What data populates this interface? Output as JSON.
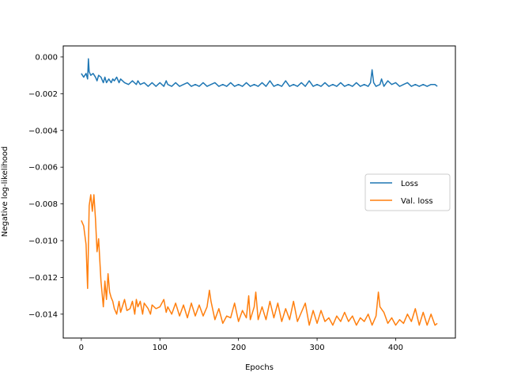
{
  "chart_data": {
    "type": "line",
    "xlabel": "Epochs",
    "ylabel": "Negative log-likelihood",
    "xlim": [
      -23,
      476
    ],
    "ylim": [
      -0.0153,
      0.0006
    ],
    "xticks": [
      0,
      100,
      200,
      300,
      400
    ],
    "xtick_labels": [
      "0",
      "100",
      "200",
      "300",
      "400"
    ],
    "yticks": [
      0.0,
      -0.002,
      -0.004,
      -0.006,
      -0.008,
      -0.01,
      -0.012,
      -0.014
    ],
    "ytick_labels": [
      "0.000",
      "−0.002",
      "−0.004",
      "−0.006",
      "−0.008",
      "−0.010",
      "−0.012",
      "−0.014"
    ],
    "grid": false,
    "legend_position": "center-right",
    "series": [
      {
        "name": "Loss",
        "color": "#1f77b4",
        "x": [
          0,
          3,
          6,
          8,
          9,
          10,
          12,
          15,
          18,
          20,
          22,
          25,
          28,
          30,
          32,
          35,
          38,
          40,
          42,
          45,
          48,
          50,
          55,
          60,
          65,
          70,
          72,
          75,
          80,
          85,
          90,
          95,
          100,
          105,
          108,
          110,
          115,
          120,
          125,
          130,
          135,
          140,
          145,
          150,
          155,
          160,
          165,
          170,
          175,
          180,
          185,
          190,
          195,
          200,
          205,
          210,
          215,
          220,
          225,
          230,
          235,
          240,
          245,
          250,
          255,
          260,
          265,
          270,
          275,
          280,
          285,
          290,
          295,
          300,
          305,
          310,
          315,
          320,
          325,
          330,
          335,
          340,
          345,
          350,
          355,
          360,
          365,
          368,
          370,
          372,
          375,
          380,
          382,
          385,
          390,
          395,
          400,
          405,
          410,
          415,
          420,
          425,
          430,
          435,
          440,
          445,
          450,
          453
        ],
        "y": [
          -0.0009,
          -0.0011,
          -0.0009,
          -0.0012,
          -0.0001,
          -0.0008,
          -0.001,
          -0.0009,
          -0.0011,
          -0.0013,
          -0.001,
          -0.0011,
          -0.0014,
          -0.0011,
          -0.0014,
          -0.0012,
          -0.0014,
          -0.0012,
          -0.0013,
          -0.0011,
          -0.0014,
          -0.0012,
          -0.0014,
          -0.0015,
          -0.0013,
          -0.0015,
          -0.0013,
          -0.0015,
          -0.0014,
          -0.0016,
          -0.0014,
          -0.0016,
          -0.0014,
          -0.0016,
          -0.0013,
          -0.0015,
          -0.0016,
          -0.0014,
          -0.0016,
          -0.0015,
          -0.0014,
          -0.0016,
          -0.0015,
          -0.0016,
          -0.0014,
          -0.0016,
          -0.0015,
          -0.0014,
          -0.0016,
          -0.0015,
          -0.0016,
          -0.0014,
          -0.0016,
          -0.0015,
          -0.0016,
          -0.0014,
          -0.0016,
          -0.0015,
          -0.0016,
          -0.0014,
          -0.0016,
          -0.0013,
          -0.0016,
          -0.0015,
          -0.0016,
          -0.0013,
          -0.0016,
          -0.0015,
          -0.0016,
          -0.0014,
          -0.0016,
          -0.0013,
          -0.0016,
          -0.0015,
          -0.0016,
          -0.0014,
          -0.0016,
          -0.0015,
          -0.0016,
          -0.0014,
          -0.0016,
          -0.0015,
          -0.0016,
          -0.0014,
          -0.0016,
          -0.0015,
          -0.0016,
          -0.0014,
          -0.0007,
          -0.0014,
          -0.0016,
          -0.0015,
          -0.0012,
          -0.0016,
          -0.0013,
          -0.0015,
          -0.0014,
          -0.0016,
          -0.0015,
          -0.0014,
          -0.0016,
          -0.0015,
          -0.0016,
          -0.0015,
          -0.0016,
          -0.0015,
          -0.0015,
          -0.0016
        ]
      },
      {
        "name": "Val. loss",
        "color": "#ff7f0e",
        "x": [
          0,
          3,
          6,
          8,
          10,
          12,
          14,
          16,
          18,
          20,
          22,
          25,
          28,
          30,
          32,
          34,
          36,
          38,
          40,
          42,
          45,
          48,
          50,
          55,
          58,
          62,
          65,
          68,
          70,
          72,
          75,
          78,
          80,
          85,
          88,
          90,
          95,
          100,
          105,
          108,
          110,
          115,
          120,
          125,
          130,
          135,
          140,
          145,
          150,
          155,
          160,
          163,
          165,
          170,
          175,
          180,
          185,
          190,
          195,
          200,
          205,
          210,
          213,
          215,
          220,
          222,
          225,
          230,
          235,
          240,
          245,
          250,
          255,
          260,
          265,
          270,
          275,
          280,
          285,
          290,
          295,
          300,
          305,
          310,
          315,
          320,
          325,
          330,
          335,
          340,
          345,
          350,
          355,
          360,
          365,
          370,
          375,
          378,
          380,
          385,
          390,
          395,
          400,
          405,
          410,
          415,
          420,
          425,
          430,
          435,
          440,
          445,
          450,
          453
        ],
        "y": [
          -0.0089,
          -0.0092,
          -0.0102,
          -0.0126,
          -0.0081,
          -0.0075,
          -0.0084,
          -0.0075,
          -0.0088,
          -0.0106,
          -0.0099,
          -0.0122,
          -0.0136,
          -0.0122,
          -0.0132,
          -0.0118,
          -0.0128,
          -0.0131,
          -0.0133,
          -0.0137,
          -0.014,
          -0.0133,
          -0.0139,
          -0.0132,
          -0.0138,
          -0.0137,
          -0.0133,
          -0.014,
          -0.0132,
          -0.0136,
          -0.0133,
          -0.014,
          -0.0134,
          -0.0137,
          -0.014,
          -0.0135,
          -0.0137,
          -0.0136,
          -0.0132,
          -0.0139,
          -0.0136,
          -0.014,
          -0.0134,
          -0.0141,
          -0.0135,
          -0.0142,
          -0.0134,
          -0.0141,
          -0.0135,
          -0.0141,
          -0.0136,
          -0.0127,
          -0.0133,
          -0.0143,
          -0.0137,
          -0.0145,
          -0.0141,
          -0.0142,
          -0.0134,
          -0.0144,
          -0.0138,
          -0.0142,
          -0.013,
          -0.0143,
          -0.0136,
          -0.0128,
          -0.0143,
          -0.0136,
          -0.0143,
          -0.0133,
          -0.0142,
          -0.0134,
          -0.0144,
          -0.0137,
          -0.0143,
          -0.0133,
          -0.0144,
          -0.0139,
          -0.0134,
          -0.0146,
          -0.0138,
          -0.0145,
          -0.0138,
          -0.0144,
          -0.0142,
          -0.0146,
          -0.0141,
          -0.0144,
          -0.0139,
          -0.0144,
          -0.0141,
          -0.0146,
          -0.0142,
          -0.0144,
          -0.014,
          -0.0146,
          -0.0141,
          -0.0128,
          -0.0136,
          -0.0139,
          -0.0145,
          -0.0142,
          -0.0146,
          -0.0143,
          -0.0145,
          -0.014,
          -0.0144,
          -0.0137,
          -0.0146,
          -0.0139,
          -0.0146,
          -0.014,
          -0.0146,
          -0.0145
        ]
      }
    ]
  }
}
